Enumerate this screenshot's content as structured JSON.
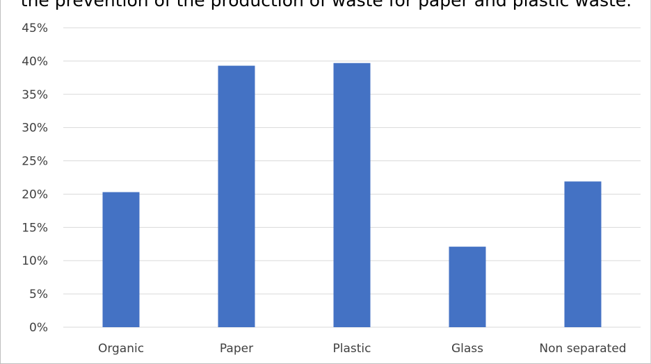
{
  "chart_data": {
    "type": "bar",
    "title": "the prevention of the production of waste for paper and plastic waste.",
    "categories": [
      "Organic",
      "Paper",
      "Plastic",
      "Glass",
      "Non separated"
    ],
    "series": [
      {
        "values": [
          20.3,
          39.3,
          39.7,
          12.1,
          21.9
        ],
        "color": "#4472c4"
      }
    ],
    "ylim": [
      0,
      45
    ],
    "yticks": [
      0,
      5,
      10,
      15,
      20,
      25,
      30,
      35,
      40,
      45
    ],
    "ytick_labels": [
      "0%",
      "5%",
      "10%",
      "15%",
      "20%",
      "25%",
      "30%",
      "35%",
      "40%",
      "45%"
    ],
    "grid": true,
    "legend": "none",
    "gridline_color": "#d9d9d9",
    "text_color": "#404040"
  }
}
